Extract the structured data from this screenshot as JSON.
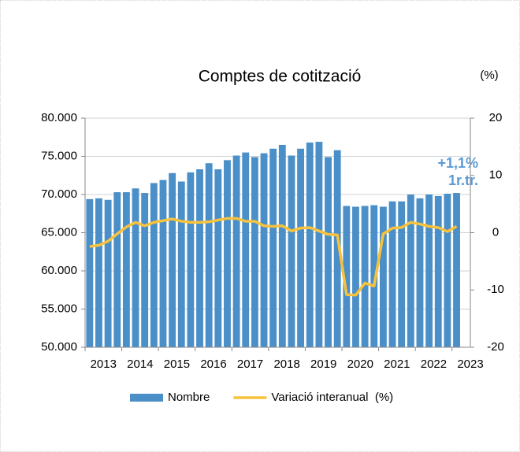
{
  "chart_data": {
    "type": "bar_line",
    "title": "Comptes de cotització",
    "y2_unit": "(%)",
    "annotation": [
      "+1,1%",
      "1r.tr."
    ],
    "categories": [
      "2013",
      null,
      null,
      null,
      "2014",
      null,
      null,
      null,
      "2015",
      null,
      null,
      null,
      "2016",
      null,
      null,
      null,
      "2017",
      null,
      null,
      null,
      "2018",
      null,
      null,
      null,
      "2019",
      null,
      null,
      null,
      "2020",
      null,
      null,
      null,
      "2021",
      null,
      null,
      null,
      "2022",
      null,
      null,
      null,
      "2023"
    ],
    "series": [
      {
        "name": "Nombre",
        "color": "#4a8fc7",
        "type": "bar",
        "values": [
          69400,
          69500,
          69300,
          70300,
          70300,
          70800,
          70200,
          71500,
          71900,
          72800,
          71700,
          72900,
          73300,
          74100,
          73300,
          74500,
          75100,
          75500,
          74900,
          75400,
          76000,
          76500,
          75100,
          76000,
          76800,
          76900,
          74900,
          75800,
          68500,
          68400,
          68500,
          68600,
          68400,
          69100,
          69100,
          70000,
          69500,
          70000,
          69800,
          70100,
          70200
        ]
      },
      {
        "name": "Variació interanual  (%)",
        "color": "#f7c23e",
        "type": "line",
        "axis": "y2",
        "values": [
          -2.4,
          -2.2,
          -1.5,
          -0.2,
          1.0,
          1.8,
          1.2,
          1.8,
          2.1,
          2.4,
          2.0,
          1.8,
          1.8,
          1.9,
          2.2,
          2.5,
          2.5,
          2.0,
          2.0,
          1.2,
          1.1,
          1.2,
          0.3,
          0.8,
          0.9,
          0.3,
          -0.3,
          -0.4,
          -10.8,
          -10.9,
          -8.8,
          -9.3,
          -0.2,
          0.8,
          0.9,
          1.8,
          1.5,
          1.1,
          0.9,
          0.2,
          1.1
        ]
      }
    ],
    "ylim": [
      50000,
      80000
    ],
    "yticks": [
      {
        "value": 50000,
        "label": "50.000"
      },
      {
        "value": 55000,
        "label": "55.000"
      },
      {
        "value": 60000,
        "label": "60.000"
      },
      {
        "value": 65000,
        "label": "65.000"
      },
      {
        "value": 70000,
        "label": "70.000"
      },
      {
        "value": 75000,
        "label": "75.000"
      },
      {
        "value": 80000,
        "label": "80.000"
      }
    ],
    "y2lim": [
      -20,
      20
    ],
    "y2ticks": [
      -20,
      -10,
      0,
      10,
      20
    ],
    "grid": true,
    "legend": "bottom"
  }
}
